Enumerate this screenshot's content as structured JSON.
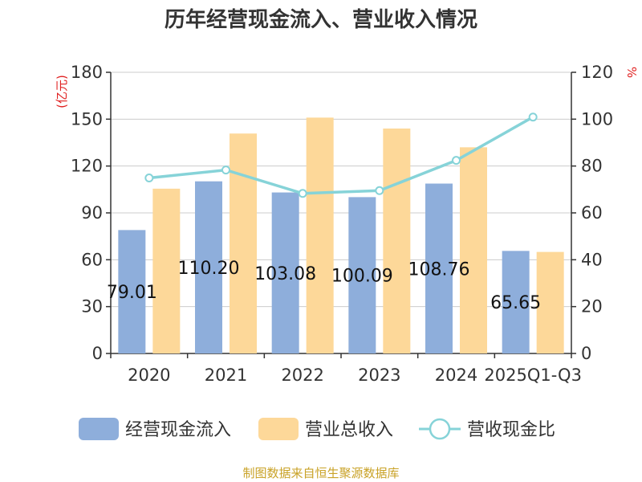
{
  "chart_data": {
    "type": "bar",
    "title": "历年经营现金流入、营业收入情况",
    "categories": [
      "2020",
      "2021",
      "2022",
      "2023",
      "2024",
      "2025Q1-Q3"
    ],
    "series": [
      {
        "name": "经营现金流入",
        "type": "bar",
        "axis": "left",
        "color": "#8eaedb",
        "values": [
          79.01,
          110.2,
          103.08,
          100.09,
          108.76,
          65.65
        ],
        "labels": [
          "79.01",
          "110.20",
          "103.08",
          "100.09",
          "108.76",
          "65.65"
        ]
      },
      {
        "name": "营业总收入",
        "type": "bar",
        "axis": "left",
        "color": "#fdd899",
        "values": [
          105.5,
          140.8,
          151.0,
          144.0,
          132.0,
          65.0
        ]
      },
      {
        "name": "营收现金比",
        "type": "line",
        "axis": "right",
        "color": "#86d3d8",
        "values": [
          74.9,
          78.3,
          68.3,
          69.5,
          82.4,
          100.9
        ]
      }
    ],
    "y_left": {
      "label": "(亿元)",
      "min": 0,
      "max": 180,
      "ticks": [
        0,
        30,
        60,
        90,
        120,
        150,
        180
      ]
    },
    "y_right": {
      "label": "%",
      "min": 0,
      "max": 120,
      "ticks": [
        0,
        20,
        40,
        60,
        80,
        100,
        120
      ]
    },
    "grid": true,
    "legend": "bottom"
  },
  "footer": {
    "source": "制图数据来自恒生聚源数据库"
  }
}
